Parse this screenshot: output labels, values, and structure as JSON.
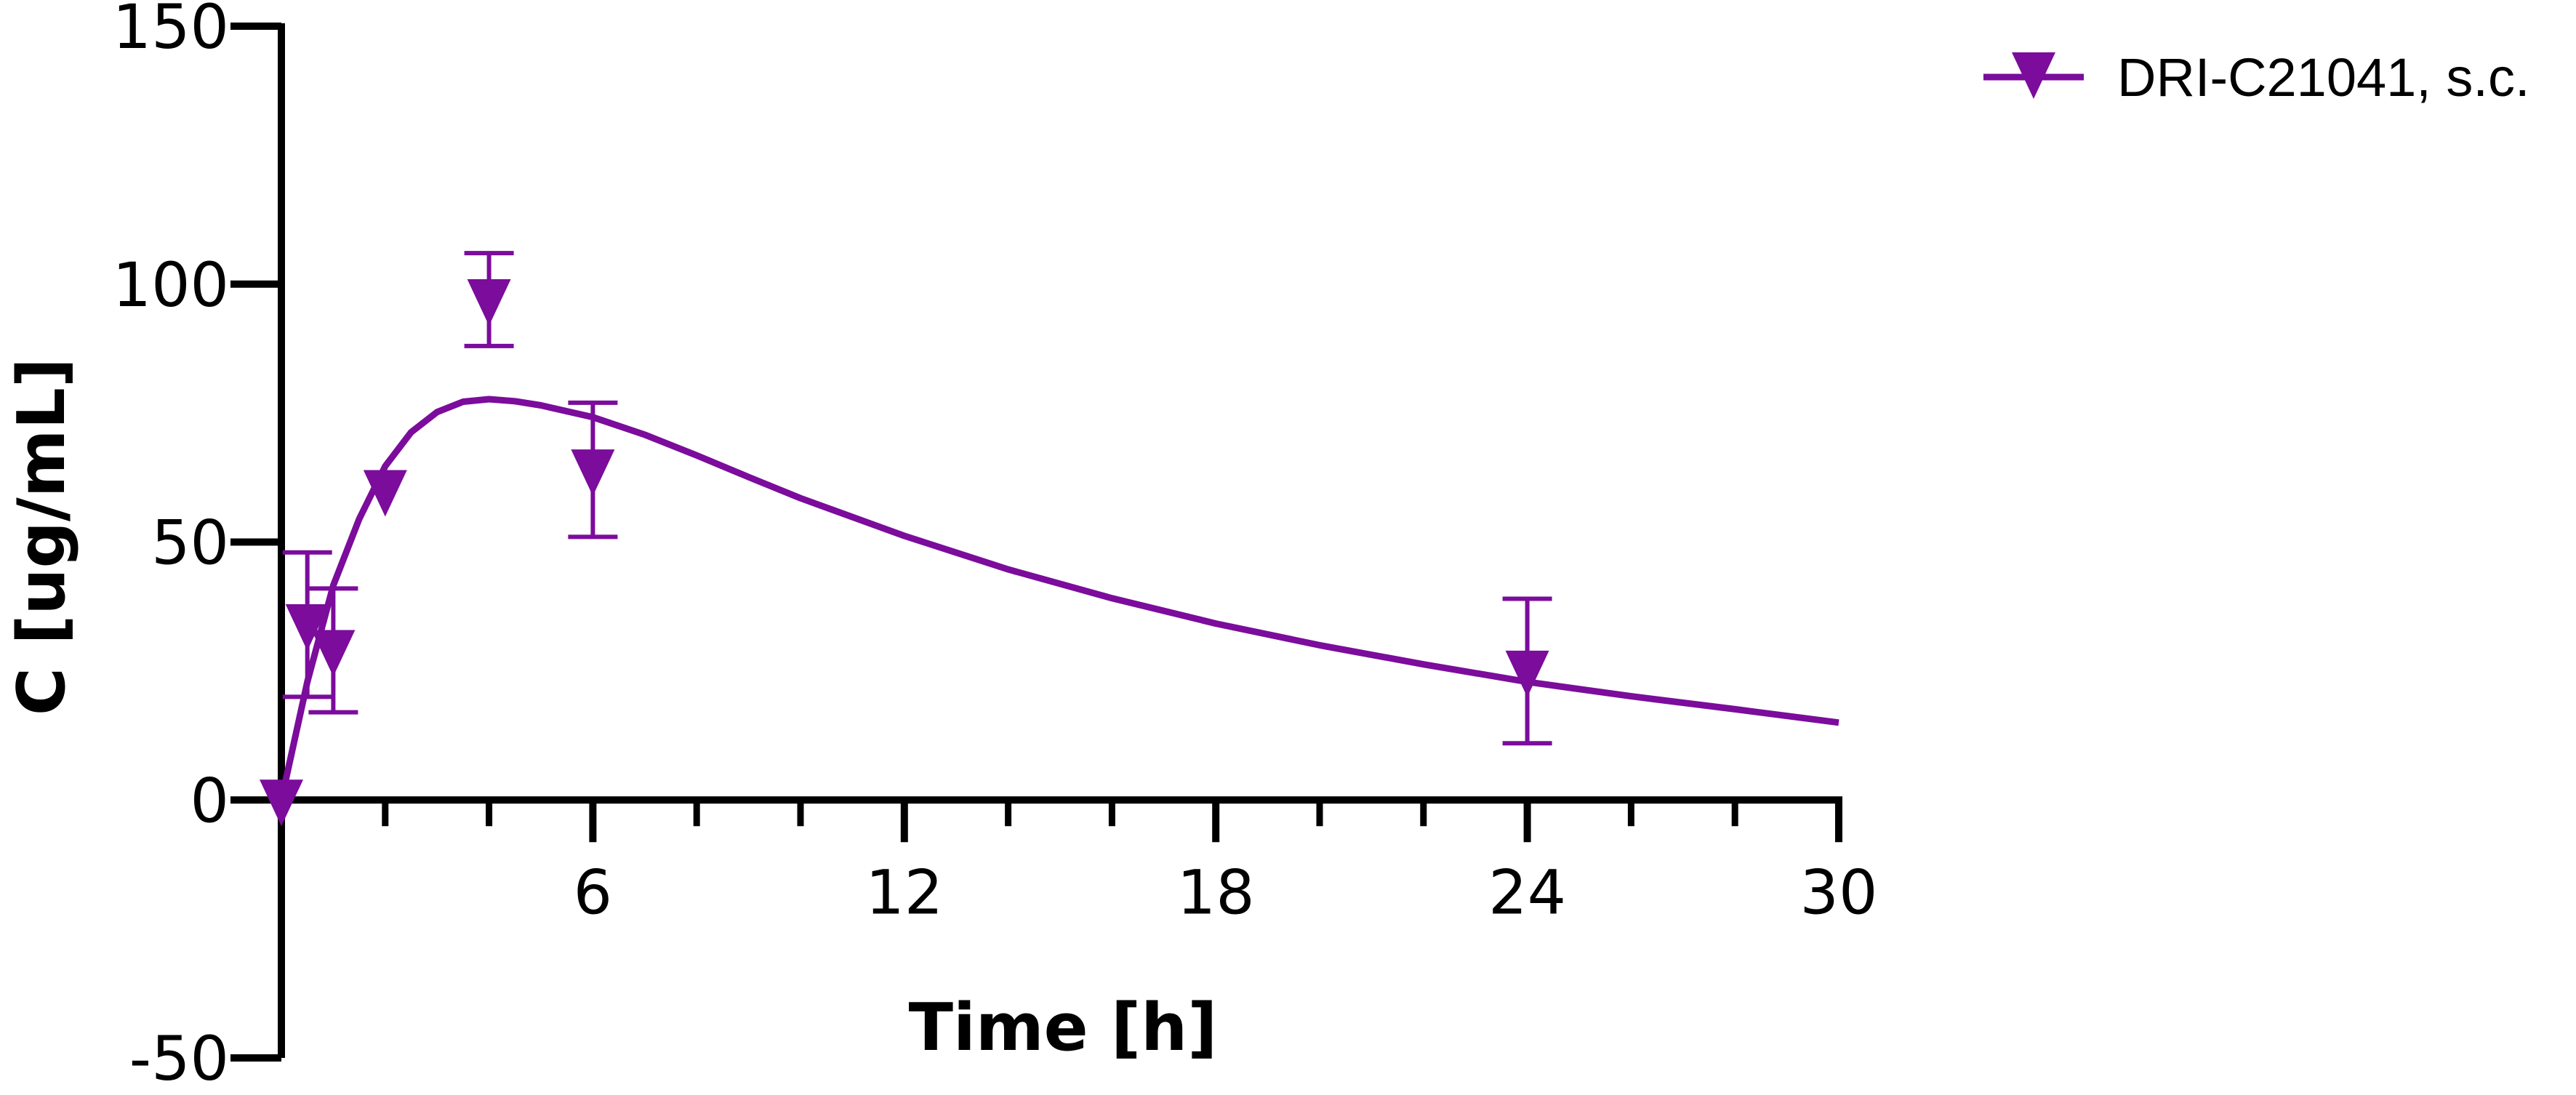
{
  "chart_data": {
    "type": "scatter",
    "title": "",
    "xlabel": "Time [h]",
    "ylabel": "C [ug/mL]",
    "xlim": [
      0,
      30
    ],
    "ylim": [
      -50,
      150
    ],
    "x_ticks": [
      6,
      12,
      18,
      24,
      30
    ],
    "x_minor_ticks": [
      0,
      2,
      4,
      6,
      8,
      10,
      12,
      14,
      16,
      18,
      20,
      22,
      24,
      26,
      28,
      30
    ],
    "y_ticks": [
      -50,
      0,
      50,
      100,
      150
    ],
    "grid": false,
    "legend": "top-right",
    "color": "#7b0c9c",
    "series": [
      {
        "name": "DRI-C21041, s.c.",
        "marker": "triangle-down",
        "points": [
          {
            "x": 0,
            "y": 0,
            "err": 0
          },
          {
            "x": 0.5,
            "y": 34,
            "err": 14
          },
          {
            "x": 1,
            "y": 29,
            "err": 12
          },
          {
            "x": 2,
            "y": 60,
            "err": 0
          },
          {
            "x": 4,
            "y": 97,
            "err": 9
          },
          {
            "x": 6,
            "y": 64,
            "err": 13
          },
          {
            "x": 24,
            "y": 25,
            "err": 14
          }
        ]
      }
    ],
    "fit_curve": {
      "x": [
        0,
        0.5,
        1,
        1.5,
        2,
        2.5,
        3,
        3.5,
        4,
        4.5,
        5,
        6,
        7,
        8,
        9,
        10,
        12,
        14,
        16,
        18,
        20,
        22,
        24,
        26,
        28,
        30
      ],
      "y": [
        0,
        22.9,
        41.6,
        54.5,
        64.7,
        71.3,
        75.2,
        77.2,
        77.7,
        77.3,
        76.5,
        74.2,
        70.8,
        66.8,
        62.6,
        58.5,
        51.2,
        44.7,
        39.1,
        34.2,
        30.0,
        26.3,
        22.9,
        20.1,
        17.6,
        15.0
      ]
    }
  }
}
